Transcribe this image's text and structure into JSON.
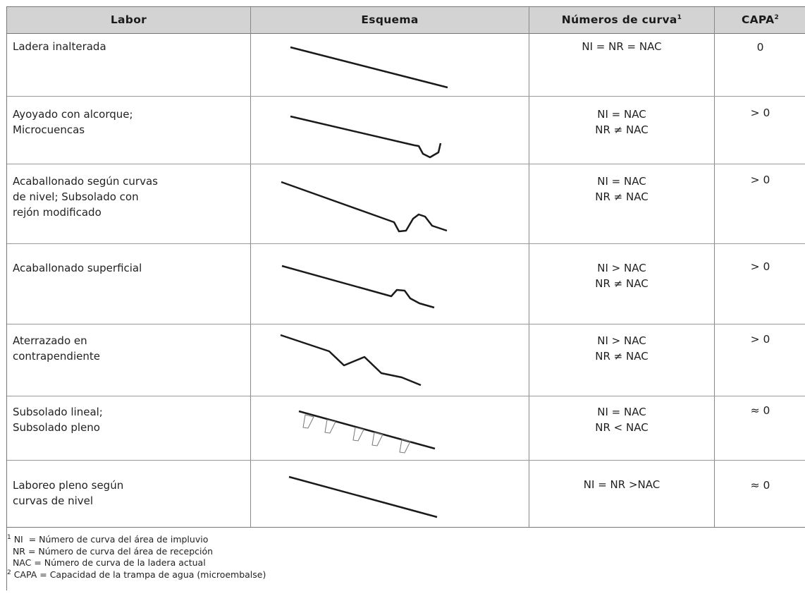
{
  "header": {
    "labor": "Labor",
    "esquema": "Esquema",
    "numeros": "Números de curva",
    "numeros_sup": "1",
    "capa": "CAPA",
    "capa_sup": "2"
  },
  "rows": [
    {
      "labor": [
        "Ladera inalterada"
      ],
      "numeros": [
        "NI = NR = NAC"
      ],
      "capa": "0",
      "schema": "straight-slope-icon"
    },
    {
      "labor": [
        "Ayoyado con alcorque;",
        "Microcuencas"
      ],
      "numeros": [
        "NI = NAC",
        "NR ≠ NAC"
      ],
      "capa": "> 0",
      "schema": "microbasin-slope-icon"
    },
    {
      "labor": [
        "Acaballonado según curvas",
        "de nivel; Subsolado con",
        "rejón modificado"
      ],
      "numeros": [
        "NI = NAC",
        "NR ≠ NAC"
      ],
      "capa": "> 0",
      "schema": "ridge-slope-icon"
    },
    {
      "labor": [
        "Acaballonado superficial"
      ],
      "numeros": [
        "NI > NAC",
        "NR ≠ NAC"
      ],
      "capa": "> 0",
      "schema": "shallow-ridge-slope-icon"
    },
    {
      "labor": [
        "Aterrazado en",
        "contrapendiente"
      ],
      "numeros": [
        "NI > NAC",
        "NR ≠ NAC"
      ],
      "capa": "> 0",
      "schema": "terrace-slope-icon"
    },
    {
      "labor": [
        "Subsolado lineal;",
        "Subsolado pleno"
      ],
      "numeros": [
        "NI = NAC",
        "NR < NAC"
      ],
      "capa": "≈ 0",
      "schema": "subsoiled-slope-icon"
    },
    {
      "labor": [
        "Laboreo pleno según",
        "curvas de nivel"
      ],
      "numeros": [
        "NI = NR >NAC"
      ],
      "capa": "≈ 0",
      "schema": "plowed-slope-icon"
    }
  ],
  "footnotes": {
    "sup1": "1",
    "line1": " NI  = Número de curva del área de impluvio",
    "line2": "  NR = Número de curva del área de recepción",
    "line3": "  NAC = Número de curva de la ladera actual",
    "sup2": "2",
    "line4": " CAPA = Capacidad de la trampa de agua (microembalse)"
  }
}
